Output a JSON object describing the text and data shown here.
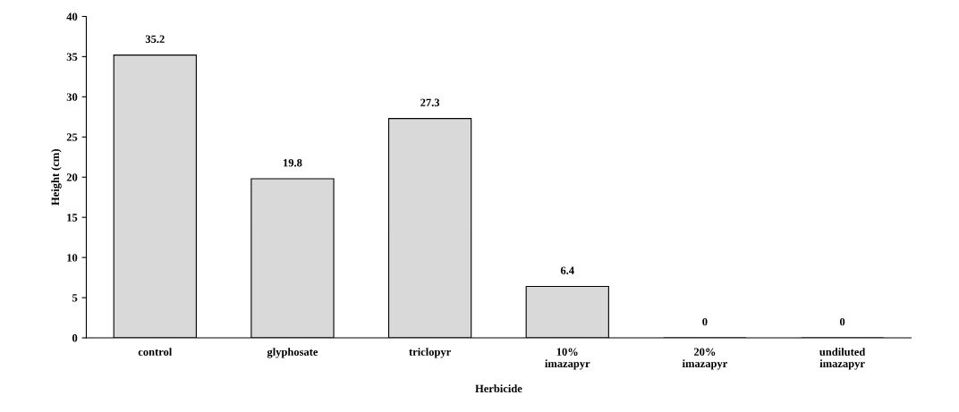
{
  "chart_data": {
    "type": "bar",
    "xlabel": "Herbicide",
    "ylabel": "Height (cm)",
    "categories": [
      "control",
      "glyphosate",
      "triclopyr",
      "10%\nimazapyr",
      "20%\nimazapyr",
      "undiluted\nimazapyr"
    ],
    "values": [
      35.2,
      19.8,
      27.3,
      6.4,
      0,
      0
    ],
    "color": "#d9d9d9",
    "ylim": [
      0,
      40
    ],
    "yticks": [
      0,
      5,
      10,
      15,
      20,
      25,
      30,
      35,
      40
    ],
    "data_labels": true,
    "grid": false,
    "legend": false
  }
}
